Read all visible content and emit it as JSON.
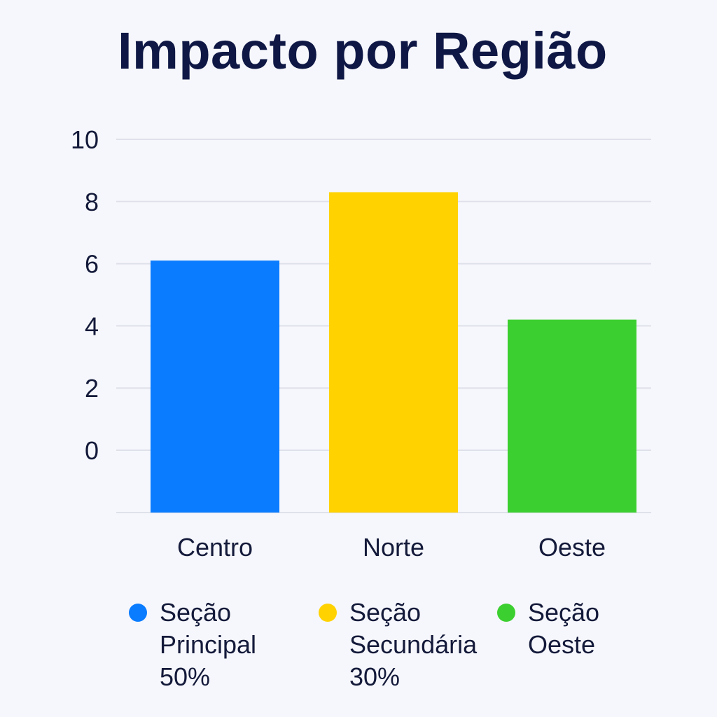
{
  "chart_data": {
    "type": "bar",
    "title": "Impacto por Região",
    "categories": [
      "Centro",
      "Norte",
      "Oeste"
    ],
    "values": [
      6.1,
      8.3,
      4.2
    ],
    "yticks": [
      0,
      2,
      4,
      6,
      8,
      10
    ],
    "ylim": [
      0,
      10
    ],
    "grid": true,
    "colors": [
      "#0a7cff",
      "#ffd200",
      "#3ccf30"
    ],
    "legend": {
      "placement": "bottom",
      "items": [
        {
          "label": "Seção\nPrincipal\n50%",
          "color": "#0a7cff"
        },
        {
          "label": "Seção\nSecundária\n30%",
          "color": "#ffd200"
        },
        {
          "label": "Seção\nOeste",
          "color": "#3ccf30"
        }
      ]
    }
  }
}
